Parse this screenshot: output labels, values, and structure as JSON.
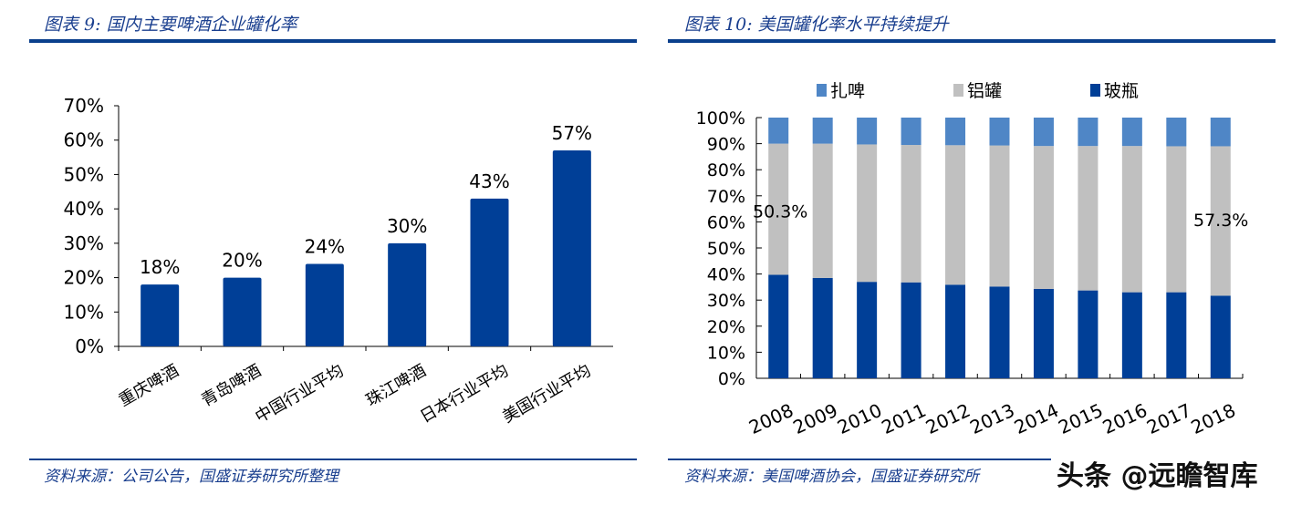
{
  "left": {
    "title": "图表 9:  国内主要啤酒企业罐化率",
    "source": "资料来源：公司公告，国盛证券研究所整理"
  },
  "right": {
    "title": "图表 10:  美国罐化率水平持续提升",
    "source": "资料来源：美国啤酒协会，国盛证券研究所"
  },
  "watermark": "头条 @远瞻智库",
  "colors": {
    "dark_blue": "#003f97",
    "light_blue": "#4f86c6",
    "gray": "#c0c0c0"
  },
  "chart_data": [
    {
      "type": "bar",
      "categories": [
        "重庆啤酒",
        "青岛啤酒",
        "中国行业平均",
        "珠江啤酒",
        "日本行业平均",
        "美国行业平均"
      ],
      "values": [
        18,
        20,
        24,
        30,
        43,
        57
      ],
      "data_labels": [
        "18%",
        "20%",
        "24%",
        "30%",
        "43%",
        "57%"
      ],
      "ylim": [
        0,
        70
      ],
      "yticks": [
        "0%",
        "10%",
        "20%",
        "30%",
        "40%",
        "50%",
        "60%",
        "70%"
      ],
      "grid": false
    },
    {
      "type": "bar",
      "stacked": true,
      "categories": [
        "2008",
        "2009",
        "2010",
        "2011",
        "2012",
        "2013",
        "2014",
        "2015",
        "2016",
        "2017",
        "2018"
      ],
      "series": [
        {
          "name": "玻瓶",
          "color": "#003f97",
          "values": [
            39.7,
            38.5,
            37.0,
            36.8,
            35.9,
            35.2,
            34.3,
            33.7,
            33.0,
            33.0,
            31.7
          ]
        },
        {
          "name": "铝罐",
          "color": "#c0c0c0",
          "values": [
            50.3,
            51.5,
            52.7,
            52.7,
            53.5,
            54.1,
            54.8,
            55.4,
            56.1,
            56.0,
            57.3
          ]
        },
        {
          "name": "扎啤",
          "color": "#4f86c6",
          "values": [
            10.0,
            10.0,
            10.3,
            10.5,
            10.6,
            10.7,
            10.9,
            10.9,
            10.9,
            11.0,
            11.0
          ]
        }
      ],
      "annotations": [
        "50.3%",
        "57.3%"
      ],
      "ylim": [
        0,
        100
      ],
      "yticks": [
        "0%",
        "10%",
        "20%",
        "30%",
        "40%",
        "50%",
        "60%",
        "70%",
        "80%",
        "90%",
        "100%"
      ],
      "legend": "top",
      "grid": false
    }
  ]
}
